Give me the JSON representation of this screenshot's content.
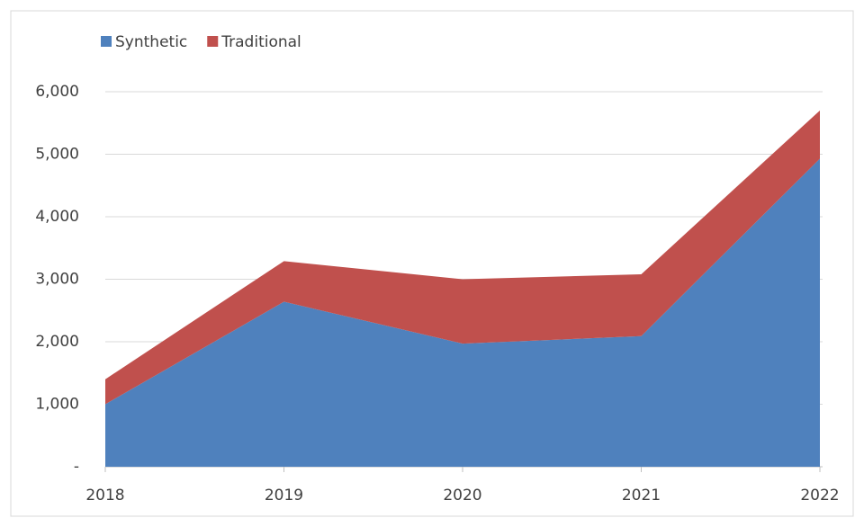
{
  "chart_data": {
    "type": "area",
    "stacked": true,
    "categories": [
      "2018",
      "2019",
      "2020",
      "2021",
      "2022"
    ],
    "series": [
      {
        "name": "Synthetic",
        "color": "#4f81bd",
        "values": [
          1000,
          2640,
          1970,
          2090,
          4930
        ]
      },
      {
        "name": "Traditional",
        "color": "#c0504d",
        "values": [
          400,
          650,
          1030,
          990,
          770
        ]
      }
    ],
    "ylim": [
      0,
      6000
    ],
    "yticks": [
      {
        "value": 0,
        "label": "-"
      },
      {
        "value": 1000,
        "label": "1,000"
      },
      {
        "value": 2000,
        "label": "2,000"
      },
      {
        "value": 3000,
        "label": "3,000"
      },
      {
        "value": 4000,
        "label": "4,000"
      },
      {
        "value": 5000,
        "label": "5,000"
      },
      {
        "value": 6000,
        "label": "6,000"
      }
    ],
    "grid": true,
    "legend": "top-left"
  }
}
